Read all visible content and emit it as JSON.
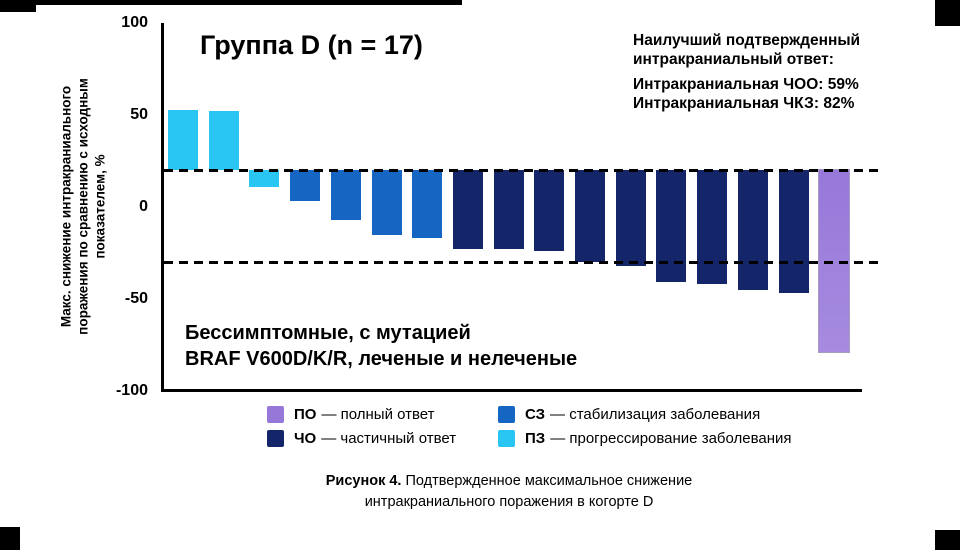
{
  "chart_data": {
    "type": "bar",
    "title": "Группа D (n = 17)",
    "ylabel": "Макс. снижение интракраниального поражения по сравнению с исходным показателем, %",
    "ylabel_lines": [
      "Макс. снижение интракраниального",
      "поражения по сравнению с исходным",
      "показателем, %"
    ],
    "ylim": [
      -100,
      100
    ],
    "yticks": [
      100,
      50,
      0,
      -50,
      -100
    ],
    "grid": false,
    "reference_lines": [
      20,
      -30
    ],
    "bar_anchor": 20,
    "color_map": {
      "ПО": "#9678D8",
      "ЧО": "#152569",
      "СЗ": "#1565C2",
      "ПЗ": "#29C6F4"
    },
    "bars": [
      {
        "value": 53,
        "response": "ПЗ"
      },
      {
        "value": 52,
        "response": "ПЗ"
      },
      {
        "value": 11,
        "response": "ПЗ"
      },
      {
        "value": 3,
        "response": "СЗ"
      },
      {
        "value": -7,
        "response": "СЗ"
      },
      {
        "value": -15,
        "response": "СЗ"
      },
      {
        "value": -17,
        "response": "СЗ"
      },
      {
        "value": -23,
        "response": "ЧО"
      },
      {
        "value": -23,
        "response": "ЧО"
      },
      {
        "value": -24,
        "response": "ЧО"
      },
      {
        "value": -30,
        "response": "ЧО"
      },
      {
        "value": -32,
        "response": "ЧО"
      },
      {
        "value": -41,
        "response": "ЧО"
      },
      {
        "value": -42,
        "response": "ЧО"
      },
      {
        "value": -45,
        "response": "ЧО"
      },
      {
        "value": -47,
        "response": "ЧО"
      },
      {
        "value": -79,
        "response": "ПО"
      }
    ],
    "annotation": {
      "header_line1": "Наилучший подтвержденный",
      "header_line2": "интракраниальный ответ:",
      "stat_line1": "Интракраниальная ЧОО: 59%",
      "stat_line2": "Интракраниальная ЧКЗ: 82%"
    },
    "inner_label": {
      "line1": "Бессимптомные, с мутацией",
      "line2": "BRAF V600D/K/R, леченые и нелеченые"
    }
  },
  "legend": {
    "items": [
      {
        "abbr": "ПО",
        "text": "— полный ответ",
        "color": "#9678D8"
      },
      {
        "abbr": "СЗ",
        "text": "— стабилизация заболевания",
        "color": "#1565C2"
      },
      {
        "abbr": "ЧО",
        "text": "— частичный ответ",
        "color": "#152569"
      },
      {
        "abbr": "ПЗ",
        "text": "— прогрессирование заболевания",
        "color": "#29C6F4"
      }
    ]
  },
  "caption": {
    "label_bold": "Рисунок 4.",
    "line1_rest": " Подтвержденное максимальное снижение",
    "line2": "интракраниального поражения в когорте D"
  }
}
